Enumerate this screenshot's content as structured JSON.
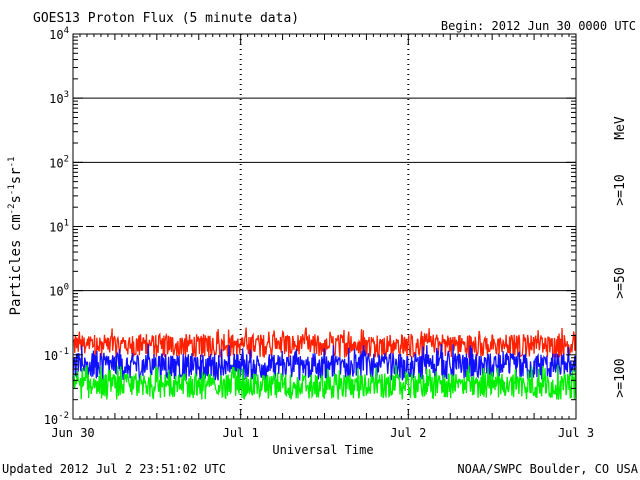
{
  "chart_data": {
    "type": "line",
    "title": "GOES13 Proton Flux (5 minute data)",
    "begin": "Begin: 2012 Jun 30 0000 UTC",
    "xlabel": "Universal Time",
    "ylabel_parts": {
      "base": "Particles cm",
      "sup1": "-2",
      "s": "s",
      "sup2": "-1",
      "sr": "sr",
      "sup3": "-1"
    },
    "x_ticks": [
      "Jun 30",
      "Jul 1",
      "Jul 2",
      "Jul 3"
    ],
    "y_scale": "log",
    "ylim": [
      0.01,
      10000
    ],
    "y_ticks": [
      {
        "base": "10",
        "exp": "-2"
      },
      {
        "base": "10",
        "exp": "-1"
      },
      {
        "base": "10",
        "exp": "0"
      },
      {
        "base": "10",
        "exp": "1"
      },
      {
        "base": "10",
        "exp": "2"
      },
      {
        "base": "10",
        "exp": "3"
      },
      {
        "base": "10",
        "exp": "4"
      }
    ],
    "threshold_lines": [
      {
        "value": 1,
        "style": "solid"
      },
      {
        "value": 10,
        "style": "dashed"
      },
      {
        "value": 100,
        "style": "solid"
      },
      {
        "value": 1000,
        "style": "solid"
      }
    ],
    "series": [
      {
        "name": ">=10",
        "color": "#ff2000",
        "baseline": 0.15,
        "jitter_low": 0.09,
        "jitter_high": 0.28
      },
      {
        "name": ">=50",
        "color": "#1010ff",
        "baseline": 0.07,
        "jitter_low": 0.04,
        "jitter_high": 0.15
      },
      {
        "name": ">=100",
        "color": "#00ee00",
        "baseline": 0.035,
        "jitter_low": 0.02,
        "jitter_high": 0.07
      }
    ],
    "unit_label": "MeV",
    "updated": "Updated 2012 Jul  2 23:51:02 UTC",
    "credit": "NOAA/SWPC Boulder, CO USA"
  }
}
